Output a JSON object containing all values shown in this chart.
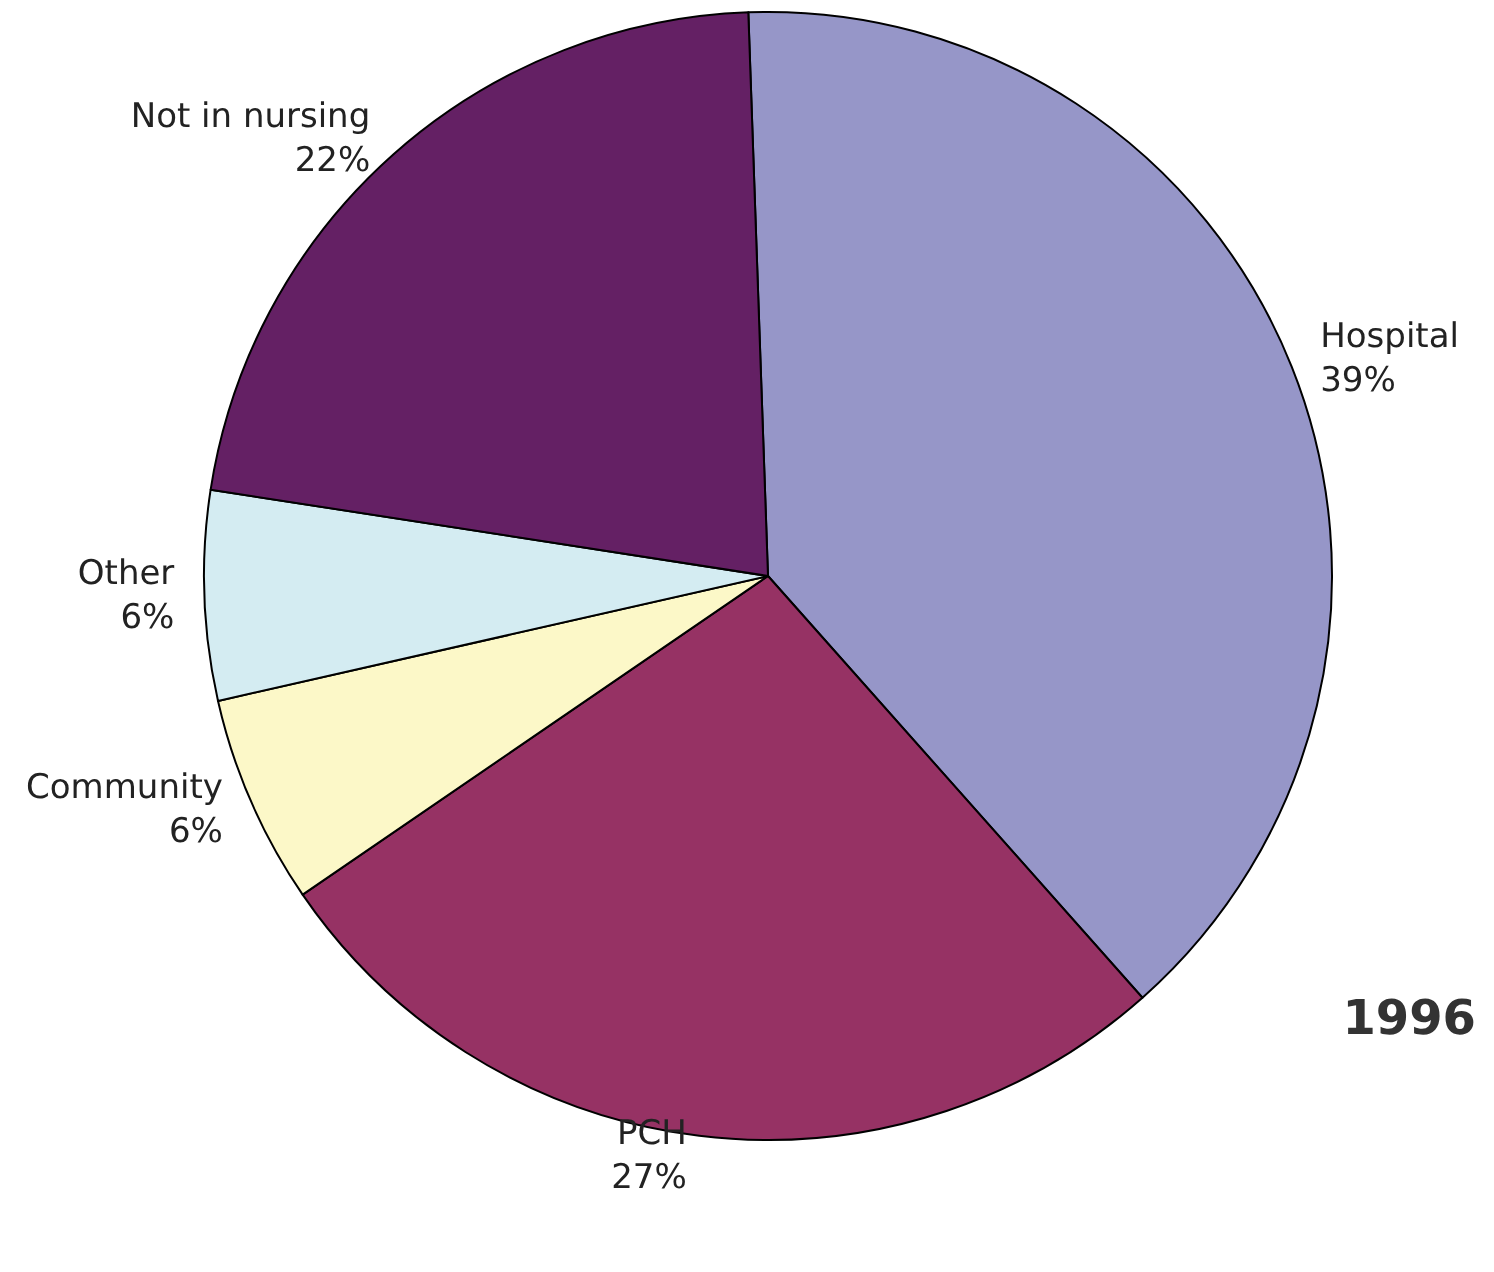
{
  "chart_data": {
    "type": "pie",
    "title": "1996",
    "categories": [
      "Hospital",
      "PCH",
      "Community",
      "Other",
      "Not in nursing"
    ],
    "values": [
      39,
      27,
      6,
      6,
      22
    ],
    "value_labels": [
      "39%",
      "27%",
      "6%",
      "6%",
      "22%"
    ],
    "colors": [
      "#9696c8",
      "#963264",
      "#fcf8c8",
      "#d4ecf2",
      "#642064"
    ],
    "legend": false
  }
}
